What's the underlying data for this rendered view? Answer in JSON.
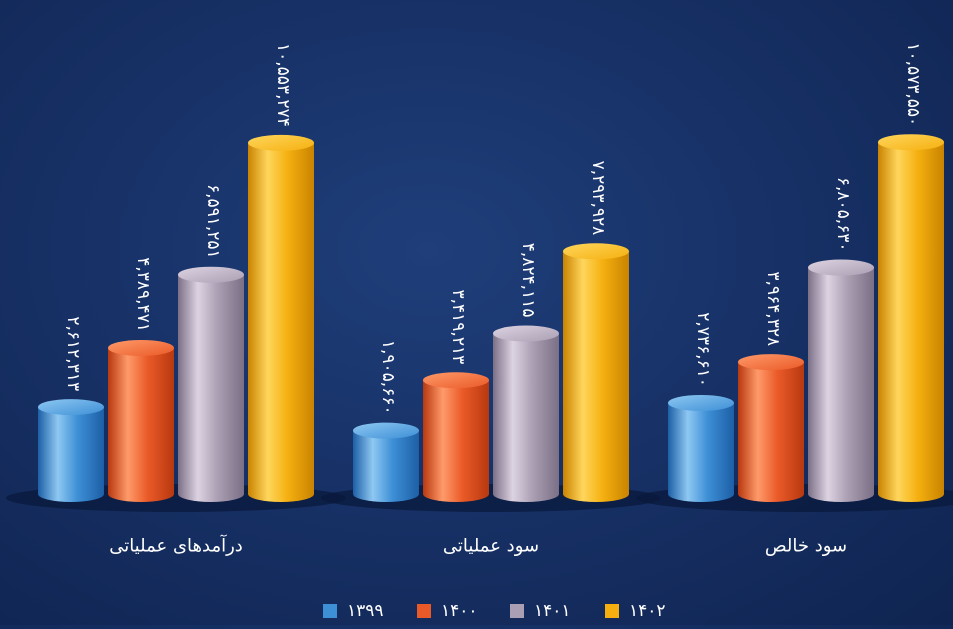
{
  "chart_data": {
    "type": "bar",
    "categories": [
      "درآمدهای عملیاتی",
      "سود عملیاتی",
      "سود خالص"
    ],
    "series": [
      {
        "name": "۱۳۹۹",
        "values": [
          2612313,
          1905660,
          2736610
        ]
      },
      {
        "name": "۱۴۰۰",
        "values": [
          4389471,
          3419213,
          3964328
        ]
      },
      {
        "name": "۱۴۰۱",
        "values": [
          6591251,
          4824115,
          6805630
        ]
      },
      {
        "name": "۱۴۰۲",
        "values": [
          10553274,
          7293928,
          10573550
        ]
      }
    ],
    "value_labels": [
      [
        "۲,۶۱۲,۳۱۳",
        "۴,۳۸۹,۴۷۱",
        "۶,۵۹۱,۲۵۱",
        "۱۰,۵۵۳,۲۷۴"
      ],
      [
        "۱,۹۰۵,۶۶۰",
        "۳,۴۱۹,۲۱۳",
        "۴,۸۲۴,۱۱۵",
        "۷,۲۹۳,۹۲۸"
      ],
      [
        "۲,۷۳۶,۶۱۰",
        "۳,۹۶۴,۳۲۸",
        "۶,۸۰۵,۶۳۰",
        "۱۰,۵۷۳,۵۵۰"
      ]
    ],
    "colors": [
      {
        "light": "#8ec8f2",
        "mid": "#3d8fd6",
        "dark": "#1d5fa6"
      },
      {
        "light": "#ff9a6a",
        "mid": "#ea5a28",
        "dark": "#b8380f"
      },
      {
        "light": "#dcd3e2",
        "mid": "#ab9fb3",
        "dark": "#7b6f86"
      },
      {
        "light": "#ffd65c",
        "mid": "#f5b010",
        "dark": "#c98300"
      }
    ],
    "legend_position": "bottom-center",
    "grid": false,
    "ylim": [
      0,
      11000000
    ]
  }
}
